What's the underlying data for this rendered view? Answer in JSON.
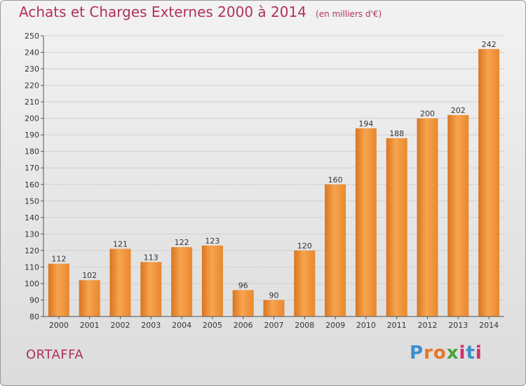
{
  "header": {
    "title": "Achats et Charges Externes 2000 à 2014",
    "unit": "(en milliers d'€)"
  },
  "footer": {
    "city": "ORTAFFA",
    "logo_text": "Proxiti"
  },
  "colors": {
    "bar_light": "#f7a44f",
    "bar_dark": "#d9751f",
    "title": "#b03060",
    "grid": "#cfcfcf"
  },
  "chart_data": {
    "type": "bar",
    "title": "Achats et Charges Externes 2000 à 2014",
    "subtitle": "(en milliers d'€)",
    "categories": [
      "2000",
      "2001",
      "2002",
      "2003",
      "2004",
      "2005",
      "2006",
      "2007",
      "2008",
      "2009",
      "2010",
      "2011",
      "2012",
      "2013",
      "2014"
    ],
    "values": [
      112,
      102,
      121,
      113,
      122,
      123,
      96,
      90,
      120,
      160,
      194,
      188,
      200,
      202,
      242
    ],
    "ylim": [
      80,
      250
    ],
    "ytick_step": 10,
    "grid": true,
    "xlabel": "",
    "ylabel": ""
  }
}
